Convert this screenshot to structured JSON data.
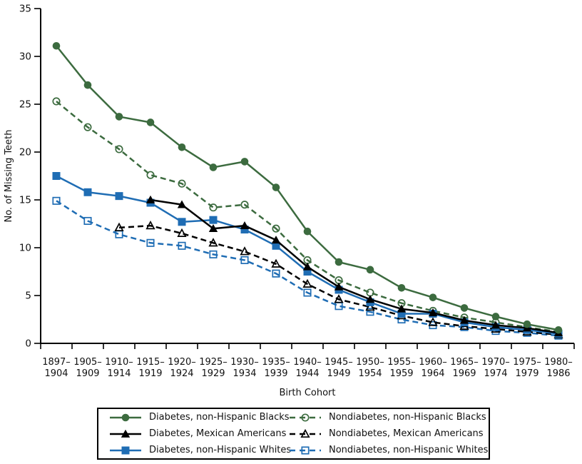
{
  "chart_data": {
    "type": "line",
    "title": "",
    "xlabel": "Birth Cohort",
    "ylabel": "No. of Missing Teeth",
    "ylim": [
      0,
      35
    ],
    "yticks": [
      0,
      5,
      10,
      15,
      20,
      25,
      30,
      35
    ],
    "grid": false,
    "legend_position": "bottom",
    "categories": [
      "1897–1904",
      "1905–1909",
      "1910–1914",
      "1915–1919",
      "1920–1924",
      "1925–1929",
      "1930–1934",
      "1935–1939",
      "1940–1944",
      "1945–1949",
      "1950–1954",
      "1955–1959",
      "1960–1964",
      "1965–1969",
      "1970–1974",
      "1975–1979",
      "1980–1986"
    ],
    "series": [
      {
        "name": "Diabetes, non-Hispanic Blacks",
        "color": "#3c6b3f",
        "dashed": false,
        "marker": "circle",
        "filled": true,
        "values": [
          31.1,
          27.0,
          23.7,
          23.1,
          20.5,
          18.4,
          19.0,
          16.3,
          11.7,
          8.5,
          7.7,
          5.8,
          4.8,
          3.7,
          2.8,
          2.0,
          1.4
        ]
      },
      {
        "name": "Diabetes, Mexican Americans",
        "color": "#000000",
        "dashed": false,
        "marker": "triangle",
        "filled": true,
        "values": [
          null,
          null,
          null,
          15.0,
          14.5,
          12.0,
          12.3,
          10.8,
          8.0,
          5.9,
          4.6,
          3.6,
          3.2,
          2.4,
          1.9,
          1.6,
          1.1
        ]
      },
      {
        "name": "Diabetes, non-Hispanic Whites",
        "color": "#1f6db4",
        "dashed": false,
        "marker": "square",
        "filled": true,
        "values": [
          17.5,
          15.8,
          15.4,
          14.7,
          12.7,
          12.9,
          11.9,
          10.2,
          7.5,
          5.6,
          4.3,
          3.1,
          3.1,
          2.2,
          1.7,
          1.4,
          1.0
        ]
      },
      {
        "name": "Nondiabetes, non-Hispanic Blacks",
        "color": "#3c6b3f",
        "dashed": true,
        "marker": "circle",
        "filled": false,
        "values": [
          25.3,
          22.6,
          20.3,
          17.6,
          16.7,
          14.2,
          14.5,
          12.0,
          8.7,
          6.6,
          5.3,
          4.2,
          3.4,
          2.7,
          2.2,
          1.7,
          1.2
        ]
      },
      {
        "name": "Nondiabetes, Mexican Americans",
        "color": "#000000",
        "dashed": true,
        "marker": "triangle",
        "filled": false,
        "values": [
          null,
          null,
          12.1,
          12.3,
          11.5,
          10.5,
          9.6,
          8.3,
          6.2,
          4.6,
          3.8,
          2.9,
          2.2,
          1.8,
          1.5,
          1.2,
          0.9
        ]
      },
      {
        "name": "Nondiabetes, non-Hispanic Whites",
        "color": "#1f6db4",
        "dashed": true,
        "marker": "square",
        "filled": false,
        "values": [
          14.9,
          12.8,
          11.4,
          10.5,
          10.2,
          9.3,
          8.7,
          7.3,
          5.3,
          3.9,
          3.3,
          2.5,
          1.9,
          1.7,
          1.3,
          1.1,
          0.8
        ]
      }
    ]
  }
}
